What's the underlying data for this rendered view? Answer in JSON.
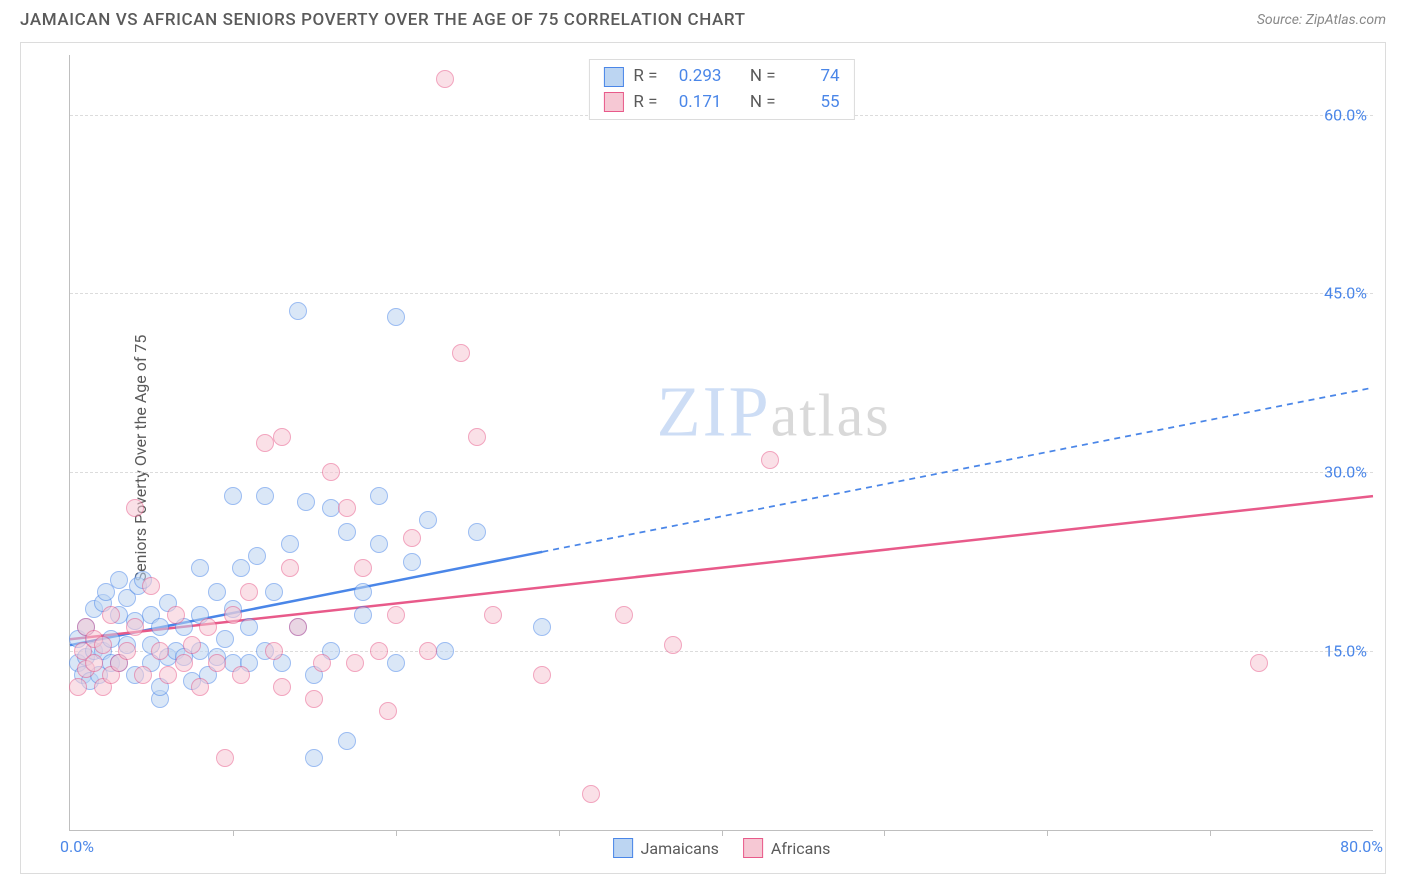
{
  "header": {
    "title": "JAMAICAN VS AFRICAN SENIORS POVERTY OVER THE AGE OF 75 CORRELATION CHART",
    "source": "Source: ZipAtlas.com"
  },
  "ylabel": "Seniors Poverty Over the Age of 75",
  "watermark": {
    "left": "ZIP",
    "right": "atlas"
  },
  "legend_top": {
    "rows": [
      {
        "r_label": "R =",
        "r": "0.293",
        "n_label": "N =",
        "n": "74",
        "sw_fill": "#bcd5f2",
        "sw_border": "#4a86e8"
      },
      {
        "r_label": "R =",
        "r": "0.171",
        "n_label": "N =",
        "n": "55",
        "sw_fill": "#f6c8d4",
        "sw_border": "#e85a8a"
      }
    ]
  },
  "legend_bottom": {
    "items": [
      {
        "label": "Jamaicans",
        "sw_fill": "#bcd5f2",
        "sw_border": "#4a86e8"
      },
      {
        "label": "Africans",
        "sw_fill": "#f6c8d4",
        "sw_border": "#e85a8a"
      }
    ]
  },
  "chart": {
    "type": "scatter",
    "xlim": [
      0,
      80
    ],
    "ylim": [
      0,
      65
    ],
    "x_axis_min_label": "0.0%",
    "x_axis_max_label": "80.0%",
    "y_gridlines": [
      15,
      30,
      45,
      60
    ],
    "y_grid_labels": [
      "15.0%",
      "30.0%",
      "45.0%",
      "60.0%"
    ],
    "x_ticks": [
      10,
      20,
      30,
      40,
      50,
      60,
      70
    ],
    "grid_color": "#dcdcdc",
    "axis_color": "#bfbfbf",
    "label_color": "#5a5a5a",
    "value_color": "#4a86e8",
    "background_color": "#ffffff",
    "title_fontsize": 17,
    "label_fontsize": 16,
    "marker_radius": 9,
    "marker_opacity": 0.55,
    "series": [
      {
        "name": "Jamaicans",
        "fill": "#bcd5f2",
        "border": "#4a86e8",
        "trend": {
          "intercept": 15.5,
          "slope": 0.27,
          "solid_until_x": 29,
          "line_width": 2.5
        },
        "points": [
          [
            0.5,
            14
          ],
          [
            0.5,
            16
          ],
          [
            0.8,
            13
          ],
          [
            1,
            14.5
          ],
          [
            1,
            17
          ],
          [
            1.2,
            12.5
          ],
          [
            1.5,
            15
          ],
          [
            1.5,
            18.5
          ],
          [
            1.8,
            13
          ],
          [
            2,
            15
          ],
          [
            2,
            19
          ],
          [
            2.2,
            20
          ],
          [
            2.5,
            14
          ],
          [
            2.5,
            16
          ],
          [
            3,
            14
          ],
          [
            3,
            18
          ],
          [
            3,
            21
          ],
          [
            3.5,
            15.5
          ],
          [
            3.5,
            19.5
          ],
          [
            4,
            13
          ],
          [
            4,
            17.5
          ],
          [
            4.2,
            20.5
          ],
          [
            4.5,
            21
          ],
          [
            5,
            14
          ],
          [
            5,
            15.5
          ],
          [
            5,
            18
          ],
          [
            5.5,
            11
          ],
          [
            5.5,
            12
          ],
          [
            5.5,
            17
          ],
          [
            6,
            14.5
          ],
          [
            6,
            19
          ],
          [
            6.5,
            15
          ],
          [
            7,
            14.5
          ],
          [
            7,
            17
          ],
          [
            7.5,
            12.5
          ],
          [
            8,
            15
          ],
          [
            8,
            18
          ],
          [
            8,
            22
          ],
          [
            8.5,
            13
          ],
          [
            9,
            14.5
          ],
          [
            9,
            20
          ],
          [
            9.5,
            16
          ],
          [
            10,
            14
          ],
          [
            10,
            18.5
          ],
          [
            10,
            28
          ],
          [
            10.5,
            22
          ],
          [
            11,
            14
          ],
          [
            11,
            17
          ],
          [
            11.5,
            23
          ],
          [
            12,
            15
          ],
          [
            12,
            28
          ],
          [
            12.5,
            20
          ],
          [
            13,
            14
          ],
          [
            13.5,
            24
          ],
          [
            14,
            43.5
          ],
          [
            14,
            17
          ],
          [
            14.5,
            27.5
          ],
          [
            15,
            13
          ],
          [
            15,
            6
          ],
          [
            16,
            27
          ],
          [
            16,
            15
          ],
          [
            17,
            7.5
          ],
          [
            17,
            25
          ],
          [
            18,
            18
          ],
          [
            18,
            20
          ],
          [
            19,
            24
          ],
          [
            19,
            28
          ],
          [
            20,
            43
          ],
          [
            20,
            14
          ],
          [
            21,
            22.5
          ],
          [
            22,
            26
          ],
          [
            23,
            15
          ],
          [
            25,
            25
          ],
          [
            29,
            17
          ]
        ]
      },
      {
        "name": "Africans",
        "fill": "#f6c8d4",
        "border": "#e85a8a",
        "trend": {
          "intercept": 16,
          "slope": 0.15,
          "solid_until_x": 80,
          "line_width": 2.5
        },
        "points": [
          [
            0.5,
            12
          ],
          [
            0.8,
            15
          ],
          [
            1,
            13.5
          ],
          [
            1,
            17
          ],
          [
            1.5,
            14
          ],
          [
            1.5,
            16
          ],
          [
            2,
            12
          ],
          [
            2,
            15.5
          ],
          [
            2.5,
            13
          ],
          [
            2.5,
            18
          ],
          [
            3,
            14
          ],
          [
            3.5,
            15
          ],
          [
            4,
            17
          ],
          [
            4,
            27
          ],
          [
            4.5,
            13
          ],
          [
            5,
            20.5
          ],
          [
            5.5,
            15
          ],
          [
            6,
            13
          ],
          [
            6.5,
            18
          ],
          [
            7,
            14
          ],
          [
            7.5,
            15.5
          ],
          [
            8,
            12
          ],
          [
            8.5,
            17
          ],
          [
            9,
            14
          ],
          [
            9.5,
            6
          ],
          [
            10,
            18
          ],
          [
            10.5,
            13
          ],
          [
            11,
            20
          ],
          [
            12,
            32.5
          ],
          [
            12.5,
            15
          ],
          [
            13,
            12
          ],
          [
            13,
            33
          ],
          [
            13.5,
            22
          ],
          [
            14,
            17
          ],
          [
            15,
            11
          ],
          [
            15.5,
            14
          ],
          [
            16,
            30
          ],
          [
            17,
            27
          ],
          [
            17.5,
            14
          ],
          [
            18,
            22
          ],
          [
            19,
            15
          ],
          [
            19.5,
            10
          ],
          [
            20,
            18
          ],
          [
            21,
            24.5
          ],
          [
            22,
            15
          ],
          [
            23,
            63
          ],
          [
            24,
            40
          ],
          [
            25,
            33
          ],
          [
            26,
            18
          ],
          [
            29,
            13
          ],
          [
            32,
            3
          ],
          [
            34,
            18
          ],
          [
            37,
            15.5
          ],
          [
            43,
            31
          ],
          [
            73,
            14
          ]
        ]
      }
    ]
  }
}
